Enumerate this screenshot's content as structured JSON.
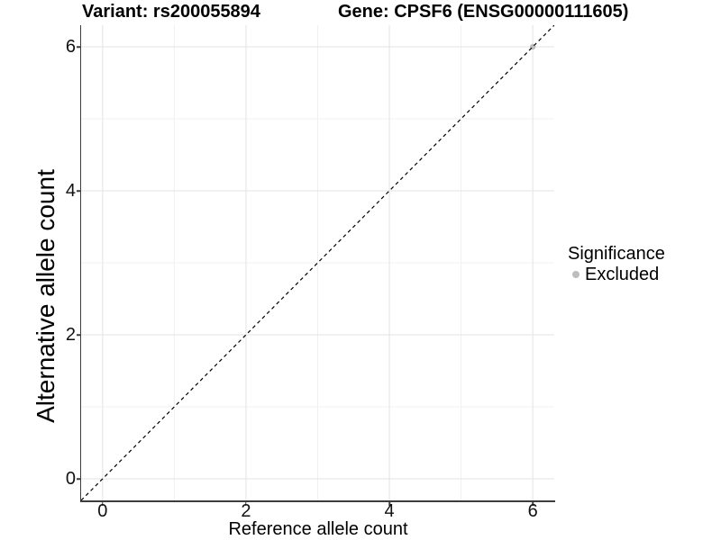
{
  "header": {
    "variant_title": "Variant: rs200055894",
    "gene_title": "Gene: CPSF6 (ENSG00000111605)"
  },
  "axes": {
    "x": {
      "title": "Reference allele count",
      "tick_labels": [
        "0",
        "2",
        "4",
        "6"
      ]
    },
    "y": {
      "title": "Alternative allele count",
      "tick_labels": [
        "0",
        "2",
        "4",
        "6"
      ]
    }
  },
  "legend": {
    "title": "Significance",
    "items": [
      {
        "label": "Excluded",
        "color": "#bdbdbd"
      }
    ]
  },
  "colors": {
    "background": "#ffffff",
    "point": "#bdbdbd",
    "grid_major": "#e3e3e3",
    "grid_minor": "#f0f0f0",
    "axis_line": "#3d3d3d",
    "dashed_line": "#000000",
    "text": "#000000"
  },
  "chart_data": {
    "type": "scatter",
    "title": "Variant: rs200055894 | Gene: CPSF6 (ENSG00000111605)",
    "xlabel": "Reference allele count",
    "ylabel": "Alternative allele count",
    "xlim": [
      -0.3,
      6.3
    ],
    "ylim": [
      -0.3,
      6.3
    ],
    "x_ticks": [
      0,
      2,
      4,
      6
    ],
    "y_ticks": [
      0,
      2,
      4,
      6
    ],
    "grid": true,
    "legend_position": "right",
    "series": [
      {
        "name": "Excluded",
        "color": "#bdbdbd",
        "points": [
          {
            "x": 6,
            "y": 6
          }
        ]
      }
    ],
    "reference_line": {
      "kind": "identity",
      "style": "dashed",
      "color": "#000000",
      "x0": -0.3,
      "y0": -0.3,
      "x1": 6.3,
      "y1": 6.3
    }
  }
}
